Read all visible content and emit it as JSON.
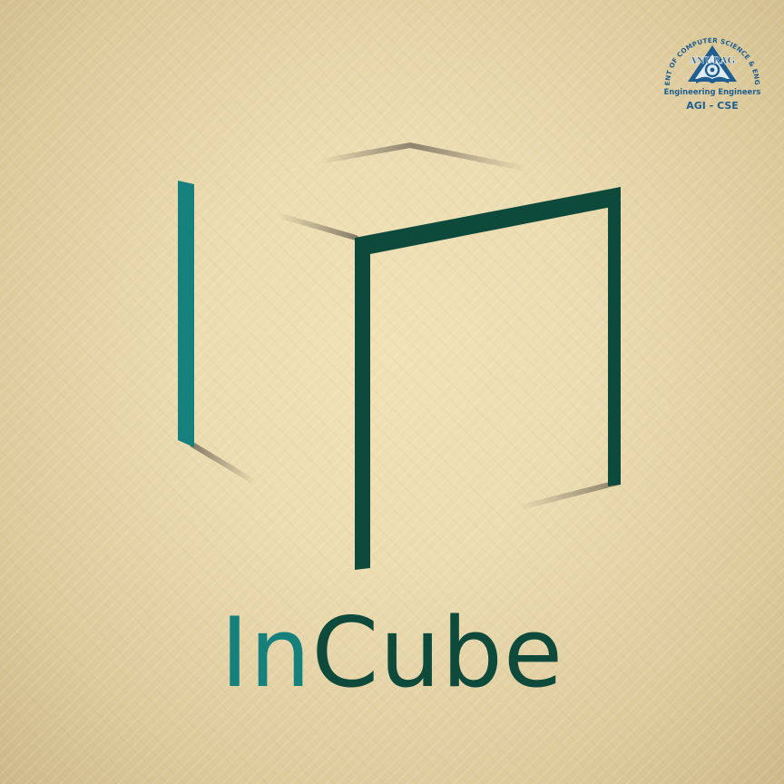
{
  "emblem": {
    "arc_text": "DEPARTMENT OF COMPUTER SCIENCE & ENGINEERING",
    "name": "ANURAG",
    "tagline": "Engineering Engineers",
    "short": "AGI - CSE"
  },
  "logo": {
    "word_part1": "In",
    "word_part2": "Cube"
  },
  "colors": {
    "teal": "#16807c",
    "dark_green": "#0e4a3c",
    "emblem_blue": "#1f5e8f"
  }
}
